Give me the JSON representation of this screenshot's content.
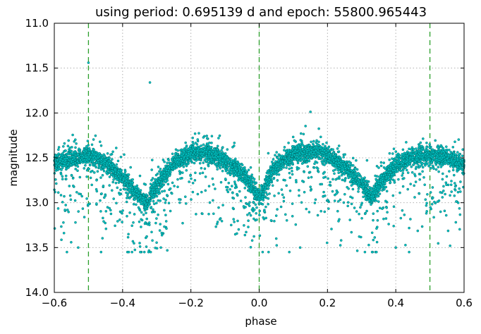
{
  "chart_data": {
    "type": "scatter",
    "title": "using period: 0.695139 d and epoch: 55800.965443",
    "xlabel": "phase",
    "ylabel": "magnitude",
    "xlim": [
      -0.6,
      0.6
    ],
    "ylim": [
      14.0,
      11.0
    ],
    "y_inverted": true,
    "grid": true,
    "x_ticks": [
      "−0.6",
      "−0.4",
      "−0.2",
      "0.0",
      "0.2",
      "0.4",
      "0.6"
    ],
    "x_tick_values": [
      -0.6,
      -0.4,
      -0.2,
      0.0,
      0.2,
      0.4,
      0.6
    ],
    "y_ticks": [
      "11.0",
      "11.5",
      "12.0",
      "12.5",
      "13.0",
      "13.5",
      "14.0"
    ],
    "y_tick_values": [
      11.0,
      11.5,
      12.0,
      12.5,
      13.0,
      13.5,
      14.0
    ],
    "vertical_lines": {
      "x": [
        -0.5,
        0.0,
        0.5
      ],
      "color": "#2ca02c",
      "style": "dashed"
    },
    "series": [
      {
        "marker_fill": "#00c0c0",
        "marker_edge": "#006060",
        "light_curve_envelope": {
          "phase": [
            -0.6,
            -0.5,
            -0.45,
            -0.4,
            -0.36,
            -0.33,
            -0.3,
            -0.25,
            -0.2,
            -0.16,
            -0.1,
            -0.05,
            -0.02,
            0.0,
            0.02,
            0.05,
            0.1,
            0.16,
            0.2,
            0.25,
            0.3,
            0.33,
            0.36,
            0.4,
            0.45,
            0.5,
            0.55,
            0.6
          ],
          "magnitude_center": [
            12.55,
            12.47,
            12.55,
            12.72,
            12.9,
            13.0,
            12.8,
            12.55,
            12.45,
            12.43,
            12.52,
            12.68,
            12.82,
            12.95,
            12.8,
            12.58,
            12.45,
            12.43,
            12.47,
            12.6,
            12.78,
            12.95,
            12.75,
            12.58,
            12.5,
            12.47,
            12.5,
            12.58
          ]
        },
        "outlier_samples": [
          {
            "x": -0.5,
            "y": 11.44
          },
          {
            "x": -0.32,
            "y": 11.66
          },
          {
            "x": -0.53,
            "y": 13.5
          },
          {
            "x": -0.35,
            "y": 13.45
          },
          {
            "x": 0.05,
            "y": 13.4
          },
          {
            "x": 0.4,
            "y": 13.5
          },
          {
            "x": 0.12,
            "y": 13.5
          },
          {
            "x": 0.24,
            "y": 13.42
          }
        ]
      }
    ]
  }
}
